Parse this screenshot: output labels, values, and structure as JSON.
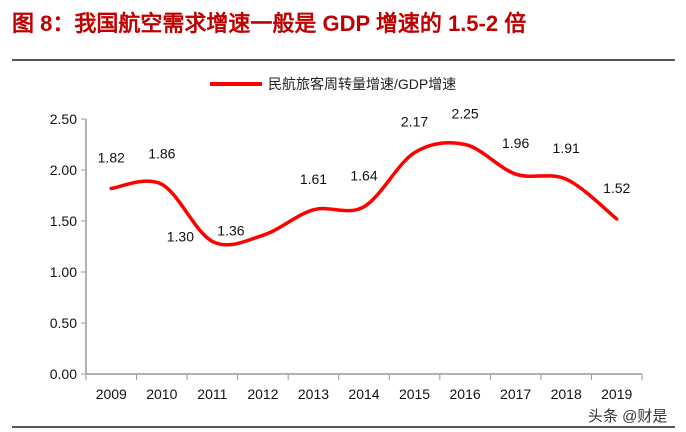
{
  "title": "图 8：我国航空需求增速一般是 GDP 增速的 1.5-2 倍",
  "watermark": "头条 @财是",
  "chart_data": {
    "type": "line",
    "categories": [
      "2009",
      "2010",
      "2011",
      "2012",
      "2013",
      "2014",
      "2015",
      "2016",
      "2017",
      "2018",
      "2019"
    ],
    "series": [
      {
        "name": "民航旅客周转量增速/GDP增速",
        "values": [
          1.82,
          1.86,
          1.3,
          1.36,
          1.61,
          1.64,
          2.17,
          2.25,
          1.96,
          1.91,
          1.52
        ],
        "color": "#ff0000"
      }
    ],
    "data_labels": [
      "1.82",
      "1.86",
      "1.30",
      "1.36",
      "1.61",
      "1.64",
      "2.17",
      "2.25",
      "1.96",
      "1.91",
      "1.52"
    ],
    "ylim": [
      0,
      2.5
    ],
    "yticks": [
      "0.00",
      "0.50",
      "1.00",
      "1.50",
      "2.00",
      "2.50"
    ],
    "smooth": true,
    "grid": false,
    "legend_position": "top"
  }
}
